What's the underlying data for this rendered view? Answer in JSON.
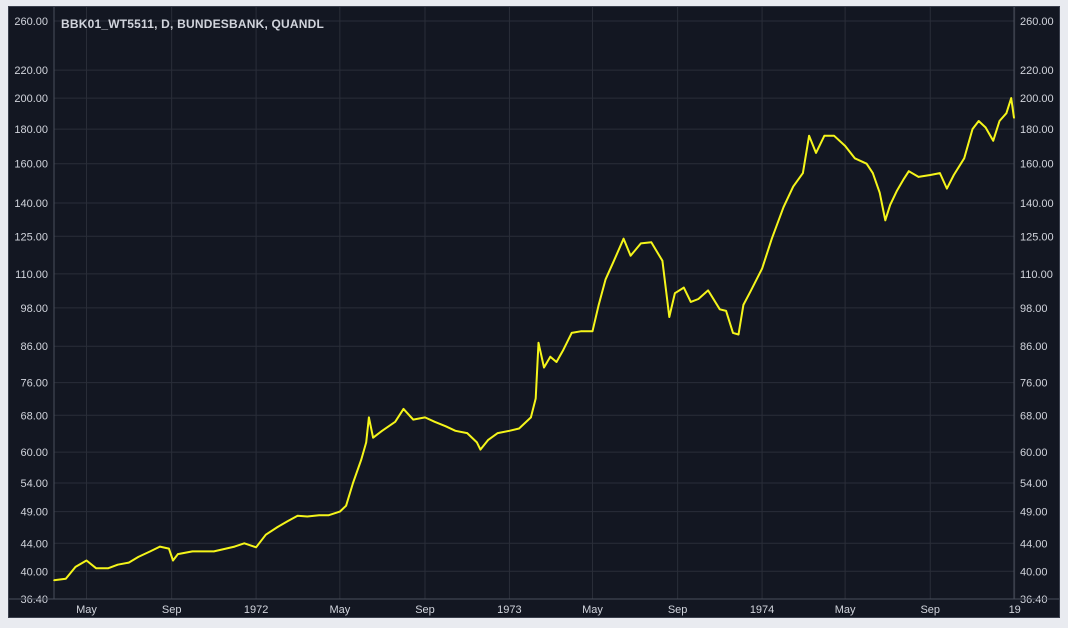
{
  "chart_data": {
    "type": "line",
    "title": "BBK01_WT5511, D, BUNDESBANK, QUANDL",
    "y_scale": "log",
    "ylim": [
      36.4,
      260
    ],
    "y_ticks": [
      "36.40",
      "40.00",
      "44.00",
      "49.00",
      "54.00",
      "60.00",
      "68.00",
      "76.00",
      "86.00",
      "98.00",
      "110.00",
      "125.00",
      "140.00",
      "160.00",
      "180.00",
      "200.00",
      "220.00",
      "260.00"
    ],
    "x_range": [
      "1971-03-15",
      "1974-12-31"
    ],
    "x_ticks": [
      {
        "date": "1971-05-01",
        "label": "May"
      },
      {
        "date": "1971-09-01",
        "label": "Sep"
      },
      {
        "date": "1972-01-01",
        "label": "1972"
      },
      {
        "date": "1972-05-01",
        "label": "May"
      },
      {
        "date": "1972-09-01",
        "label": "Sep"
      },
      {
        "date": "1973-01-01",
        "label": "1973"
      },
      {
        "date": "1973-05-01",
        "label": "May"
      },
      {
        "date": "1973-09-01",
        "label": "Sep"
      },
      {
        "date": "1974-01-01",
        "label": "1974"
      },
      {
        "date": "1974-05-01",
        "label": "May"
      },
      {
        "date": "1974-09-01",
        "label": "Sep"
      },
      {
        "date": "1975-01-01",
        "label": "19"
      }
    ],
    "line_color": "#f5f51a",
    "grid": true,
    "series": [
      {
        "values": [
          [
            "1971-03-15",
            38.8
          ],
          [
            "1971-04-01",
            39.0
          ],
          [
            "1971-04-15",
            40.6
          ],
          [
            "1971-05-01",
            41.5
          ],
          [
            "1971-05-15",
            40.4
          ],
          [
            "1971-06-01",
            40.4
          ],
          [
            "1971-06-15",
            40.9
          ],
          [
            "1971-07-01",
            41.2
          ],
          [
            "1971-07-15",
            42.0
          ],
          [
            "1971-08-01",
            42.8
          ],
          [
            "1971-08-15",
            43.5
          ],
          [
            "1971-08-28",
            43.2
          ],
          [
            "1971-09-03",
            41.5
          ],
          [
            "1971-09-10",
            42.4
          ],
          [
            "1971-10-01",
            42.8
          ],
          [
            "1971-11-01",
            42.8
          ],
          [
            "1971-12-01",
            43.5
          ],
          [
            "1971-12-15",
            44.0
          ],
          [
            "1972-01-01",
            43.4
          ],
          [
            "1972-01-15",
            45.3
          ],
          [
            "1972-02-01",
            46.5
          ],
          [
            "1972-02-15",
            47.4
          ],
          [
            "1972-03-01",
            48.3
          ],
          [
            "1972-03-15",
            48.2
          ],
          [
            "1972-04-01",
            48.4
          ],
          [
            "1972-04-15",
            48.4
          ],
          [
            "1972-05-01",
            49.0
          ],
          [
            "1972-05-10",
            50.0
          ],
          [
            "1972-05-20",
            54.0
          ],
          [
            "1972-06-01",
            58.5
          ],
          [
            "1972-06-08",
            62.0
          ],
          [
            "1972-06-12",
            67.5
          ],
          [
            "1972-06-18",
            63.0
          ],
          [
            "1972-07-01",
            64.5
          ],
          [
            "1972-07-20",
            66.5
          ],
          [
            "1972-08-01",
            69.5
          ],
          [
            "1972-08-15",
            67.0
          ],
          [
            "1972-09-01",
            67.5
          ],
          [
            "1972-09-15",
            66.5
          ],
          [
            "1972-10-01",
            65.5
          ],
          [
            "1972-10-15",
            64.5
          ],
          [
            "1972-11-01",
            64.0
          ],
          [
            "1972-11-15",
            62.0
          ],
          [
            "1972-11-20",
            60.5
          ],
          [
            "1972-12-01",
            62.5
          ],
          [
            "1972-12-15",
            64.0
          ],
          [
            "1973-01-01",
            64.5
          ],
          [
            "1973-01-15",
            65.0
          ],
          [
            "1973-02-01",
            67.5
          ],
          [
            "1973-02-08",
            72.0
          ],
          [
            "1973-02-12",
            87.0
          ],
          [
            "1973-02-20",
            80.0
          ],
          [
            "1973-03-01",
            83.0
          ],
          [
            "1973-03-10",
            81.5
          ],
          [
            "1973-03-20",
            85.0
          ],
          [
            "1973-04-01",
            90.0
          ],
          [
            "1973-04-15",
            90.5
          ],
          [
            "1973-05-01",
            90.5
          ],
          [
            "1973-05-10",
            99.0
          ],
          [
            "1973-05-20",
            108.0
          ],
          [
            "1973-06-01",
            115.0
          ],
          [
            "1973-06-15",
            124.0
          ],
          [
            "1973-06-25",
            117.0
          ],
          [
            "1973-07-10",
            122.0
          ],
          [
            "1973-07-25",
            122.5
          ],
          [
            "1973-08-10",
            115.0
          ],
          [
            "1973-08-20",
            95.0
          ],
          [
            "1973-08-28",
            103.0
          ],
          [
            "1973-09-10",
            105.0
          ],
          [
            "1973-09-20",
            100.0
          ],
          [
            "1973-10-01",
            101.0
          ],
          [
            "1973-10-15",
            104.0
          ],
          [
            "1973-11-01",
            97.5
          ],
          [
            "1973-11-10",
            97.0
          ],
          [
            "1973-11-20",
            90.0
          ],
          [
            "1973-11-28",
            89.5
          ],
          [
            "1973-12-05",
            99.0
          ],
          [
            "1973-12-15",
            103.5
          ],
          [
            "1974-01-01",
            112.0
          ],
          [
            "1974-01-15",
            124.0
          ],
          [
            "1974-02-01",
            138.0
          ],
          [
            "1974-02-15",
            148.0
          ],
          [
            "1974-03-01",
            155.0
          ],
          [
            "1974-03-10",
            176.0
          ],
          [
            "1974-03-20",
            166.0
          ],
          [
            "1974-04-01",
            176.0
          ],
          [
            "1974-04-15",
            176.0
          ],
          [
            "1974-05-01",
            170.0
          ],
          [
            "1974-05-15",
            163.0
          ],
          [
            "1974-06-01",
            160.0
          ],
          [
            "1974-06-10",
            155.0
          ],
          [
            "1974-06-20",
            145.0
          ],
          [
            "1974-06-28",
            132.0
          ],
          [
            "1974-07-05",
            139.0
          ],
          [
            "1974-07-15",
            146.0
          ],
          [
            "1974-07-25",
            152.0
          ],
          [
            "1974-08-01",
            156.0
          ],
          [
            "1974-08-15",
            153.0
          ],
          [
            "1974-09-01",
            154.0
          ],
          [
            "1974-09-15",
            155.0
          ],
          [
            "1974-09-25",
            147.0
          ],
          [
            "1974-10-05",
            154.0
          ],
          [
            "1974-10-20",
            163.0
          ],
          [
            "1974-11-01",
            180.0
          ],
          [
            "1974-11-10",
            185.0
          ],
          [
            "1974-11-20",
            181.0
          ],
          [
            "1974-12-01",
            173.0
          ],
          [
            "1974-12-10",
            185.0
          ],
          [
            "1974-12-20",
            190.0
          ],
          [
            "1974-12-27",
            200.0
          ],
          [
            "1974-12-31",
            187.0
          ]
        ]
      }
    ]
  }
}
